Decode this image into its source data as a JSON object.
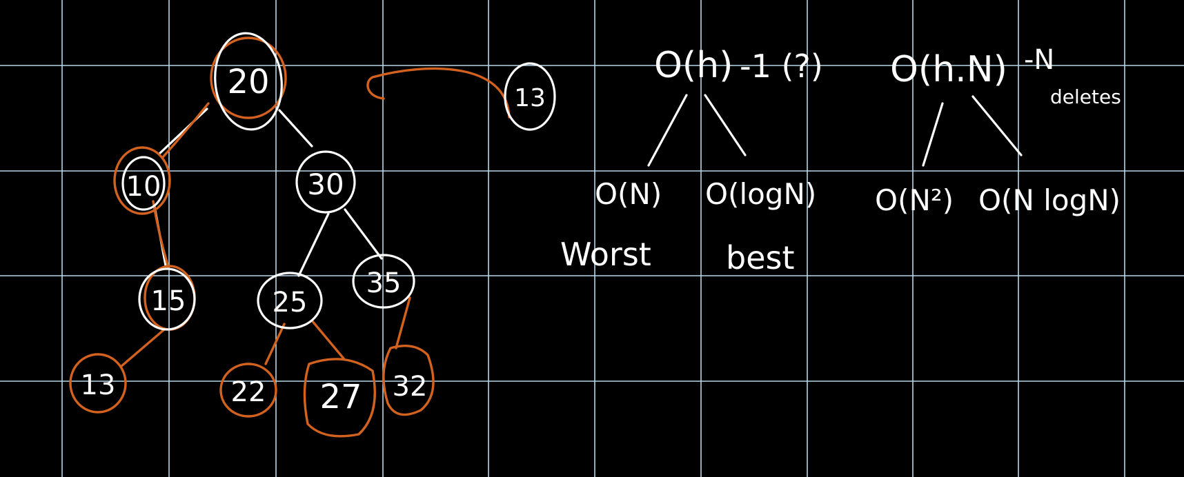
{
  "canvas": {
    "background": "#000000",
    "grid_color": "#b9d8ea",
    "ink_white": "#ffffff",
    "ink_orange": "#d4621f"
  },
  "tree": {
    "nodes": {
      "n20": "20",
      "n10": "10",
      "n30": "30",
      "n15": "15",
      "n25": "25",
      "n35": "35",
      "n13": "13",
      "n22": "22",
      "n27": "27",
      "n32": "32"
    },
    "insert_value": "13"
  },
  "complexity": {
    "left": {
      "top": "O(h)",
      "suffix": "-1 (?)",
      "worst": "O(N)",
      "best": "O(logN)",
      "worst_label": "Worst",
      "best_label": "best"
    },
    "right": {
      "top": "O(h.N)",
      "suffix": "-N",
      "note": "deletes",
      "left_leaf": "O(N²)",
      "right_leaf": "O(N logN)"
    }
  }
}
